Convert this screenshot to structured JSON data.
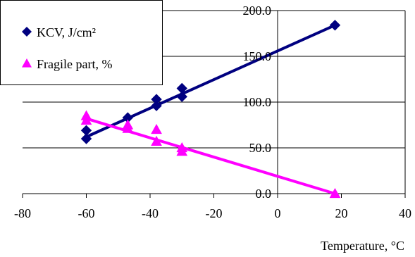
{
  "chart_data": {
    "type": "scatter",
    "title": "",
    "xlabel": "Temperature, °C",
    "ylabel": "",
    "xlim": [
      -80,
      40
    ],
    "ylim": [
      0,
      200
    ],
    "x_ticks": [
      "-80",
      "-60",
      "-40",
      "-20",
      "0",
      "20",
      "40"
    ],
    "y_ticks": [
      "0.0",
      "50.0",
      "100.0",
      "150.0",
      "200.0"
    ],
    "grid": "horizontal",
    "legend_position": "top-left",
    "series": [
      {
        "name": "KCV, J/cm²",
        "marker": "diamond",
        "color": "#000080",
        "points": [
          {
            "x": -60,
            "y": 60
          },
          {
            "x": -60,
            "y": 69
          },
          {
            "x": -47,
            "y": 83
          },
          {
            "x": -38,
            "y": 96
          },
          {
            "x": -38,
            "y": 103
          },
          {
            "x": -30,
            "y": 106
          },
          {
            "x": -30,
            "y": 115
          },
          {
            "x": 18,
            "y": 184
          }
        ],
        "trend": [
          {
            "x": -60,
            "y": 62
          },
          {
            "x": 18,
            "y": 184
          }
        ]
      },
      {
        "name": "Fragile part, %",
        "marker": "triangle",
        "color": "#FF00FF",
        "points": [
          {
            "x": -60,
            "y": 85
          },
          {
            "x": -60,
            "y": 80
          },
          {
            "x": -47,
            "y": 75
          },
          {
            "x": -47,
            "y": 71
          },
          {
            "x": -38,
            "y": 70
          },
          {
            "x": -38,
            "y": 57
          },
          {
            "x": -30,
            "y": 50
          },
          {
            "x": -30,
            "y": 46
          },
          {
            "x": 18,
            "y": 0
          }
        ],
        "trend": [
          {
            "x": -60,
            "y": 82
          },
          {
            "x": 18,
            "y": 0
          }
        ]
      }
    ]
  }
}
